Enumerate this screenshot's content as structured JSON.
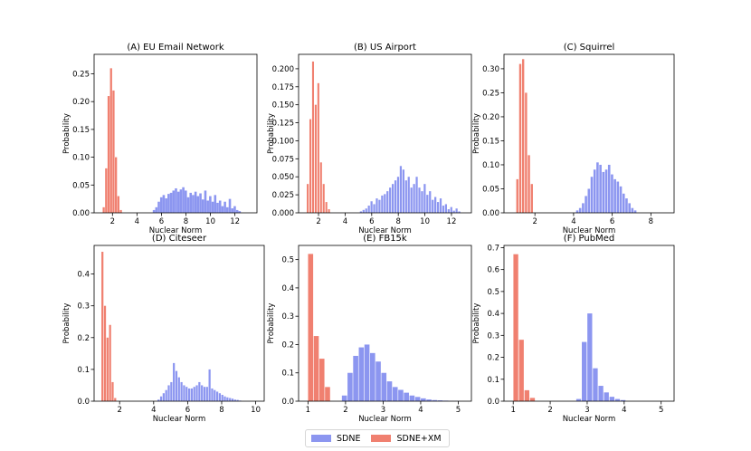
{
  "figure": {
    "legend": [
      {
        "label": "SDNE",
        "color": "#8c96f0"
      },
      {
        "label": "SDNE+XM",
        "color": "#f08070"
      }
    ]
  },
  "chart_data": [
    {
      "type": "bar",
      "title": "(A) EU Email Network",
      "xlabel": "Nuclear  Norm",
      "ylabel": "Probability",
      "xlim": [
        0.5,
        13.8
      ],
      "ylim": [
        0,
        0.285
      ],
      "xticks": [
        2,
        4,
        6,
        8,
        10,
        12
      ],
      "yticks": [
        0,
        0.05,
        0.1,
        0.15,
        0.2,
        0.25
      ],
      "ytick_labels": [
        "0.00",
        "0.05",
        "0.10",
        "0.15",
        "0.20",
        "0.25"
      ],
      "series": [
        {
          "name": "SDNE+XM",
          "bin_width": 0.2,
          "x": [
            1.3,
            1.5,
            1.7,
            1.9,
            2.1,
            2.3,
            2.5,
            2.7
          ],
          "values": [
            0.01,
            0.08,
            0.21,
            0.26,
            0.22,
            0.1,
            0.03,
            0.005
          ]
        },
        {
          "name": "SDNE",
          "bin_width": 0.22,
          "x": [
            5.4,
            5.6,
            5.8,
            6.0,
            6.2,
            6.4,
            6.6,
            6.8,
            7.0,
            7.2,
            7.4,
            7.6,
            7.8,
            8.0,
            8.2,
            8.4,
            8.6,
            8.8,
            9.0,
            9.2,
            9.4,
            9.6,
            9.8,
            10.0,
            10.2,
            10.4,
            10.6,
            10.8,
            11.0,
            11.2,
            11.4,
            11.6,
            11.8,
            12.0,
            12.2,
            12.4
          ],
          "values": [
            0.005,
            0.01,
            0.02,
            0.028,
            0.032,
            0.026,
            0.034,
            0.036,
            0.04,
            0.044,
            0.038,
            0.042,
            0.046,
            0.04,
            0.028,
            0.036,
            0.032,
            0.038,
            0.03,
            0.035,
            0.024,
            0.04,
            0.022,
            0.03,
            0.02,
            0.032,
            0.018,
            0.022,
            0.012,
            0.02,
            0.01,
            0.025,
            0.008,
            0.012,
            0.005,
            0.003
          ]
        }
      ]
    },
    {
      "type": "bar",
      "title": "(B) US Airport",
      "xlabel": "Nuclear  Norm",
      "ylabel": "Probability",
      "xlim": [
        0.5,
        13.5
      ],
      "ylim": [
        0,
        0.22
      ],
      "xticks": [
        2,
        4,
        6,
        8,
        10,
        12
      ],
      "yticks": [
        0,
        0.025,
        0.05,
        0.075,
        0.1,
        0.125,
        0.15,
        0.175,
        0.2
      ],
      "ytick_labels": [
        "0.000",
        "0.025",
        "0.050",
        "0.075",
        "0.100",
        "0.125",
        "0.150",
        "0.175",
        "0.200"
      ],
      "series": [
        {
          "name": "SDNE+XM",
          "bin_width": 0.17,
          "x": [
            1.2,
            1.4,
            1.6,
            1.8,
            2.0,
            2.2,
            2.4,
            2.6,
            2.8
          ],
          "values": [
            0.04,
            0.13,
            0.21,
            0.15,
            0.18,
            0.07,
            0.04,
            0.015,
            0.005
          ]
        },
        {
          "name": "SDNE",
          "bin_width": 0.18,
          "x": [
            5.2,
            5.4,
            5.6,
            5.8,
            6.0,
            6.2,
            6.4,
            6.6,
            6.8,
            7.0,
            7.2,
            7.4,
            7.6,
            7.8,
            8.0,
            8.2,
            8.4,
            8.6,
            8.8,
            9.0,
            9.2,
            9.4,
            9.6,
            9.8,
            10.0,
            10.2,
            10.4,
            10.6,
            10.8,
            11.0,
            11.2,
            11.4,
            11.6,
            11.8,
            12.0,
            12.2,
            12.4,
            12.6
          ],
          "values": [
            0.002,
            0.004,
            0.006,
            0.01,
            0.016,
            0.012,
            0.02,
            0.018,
            0.024,
            0.026,
            0.03,
            0.035,
            0.04,
            0.045,
            0.05,
            0.065,
            0.06,
            0.045,
            0.05,
            0.035,
            0.04,
            0.05,
            0.035,
            0.03,
            0.04,
            0.025,
            0.03,
            0.018,
            0.022,
            0.015,
            0.02,
            0.01,
            0.012,
            0.005,
            0.008,
            0.003,
            0.006,
            0.002
          ]
        }
      ]
    },
    {
      "type": "bar",
      "title": "(C) Squirrel",
      "xlabel": "Nuclear  Norm",
      "ylabel": "Probability",
      "xlim": [
        0.4,
        9.2
      ],
      "ylim": [
        0,
        0.33
      ],
      "xticks": [
        2,
        4,
        6,
        8
      ],
      "yticks": [
        0,
        0.05,
        0.1,
        0.15,
        0.2,
        0.25,
        0.3
      ],
      "ytick_labels": [
        "0.00",
        "0.05",
        "0.10",
        "0.15",
        "0.20",
        "0.25",
        "0.30"
      ],
      "series": [
        {
          "name": "SDNE+XM",
          "bin_width": 0.13,
          "x": [
            1.1,
            1.25,
            1.4,
            1.55,
            1.7,
            1.85
          ],
          "values": [
            0.07,
            0.31,
            0.32,
            0.25,
            0.12,
            0.06
          ]
        },
        {
          "name": "SDNE",
          "bin_width": 0.14,
          "x": [
            4.2,
            4.35,
            4.5,
            4.65,
            4.8,
            4.95,
            5.1,
            5.25,
            5.4,
            5.55,
            5.7,
            5.85,
            6.0,
            6.15,
            6.3,
            6.45,
            6.6,
            6.75,
            6.9,
            7.05,
            7.2
          ],
          "values": [
            0.005,
            0.01,
            0.02,
            0.035,
            0.05,
            0.075,
            0.09,
            0.105,
            0.1,
            0.085,
            0.09,
            0.1,
            0.08,
            0.07,
            0.065,
            0.055,
            0.04,
            0.03,
            0.02,
            0.01,
            0.005
          ]
        }
      ]
    },
    {
      "type": "bar",
      "title": "(D) Citeseer",
      "xlabel": "Nuclear  Norm",
      "ylabel": "Probability",
      "xlim": [
        0.5,
        10.5
      ],
      "ylim": [
        0,
        0.49
      ],
      "xticks": [
        2,
        4,
        6,
        8,
        10
      ],
      "yticks": [
        0,
        0.1,
        0.2,
        0.3,
        0.4
      ],
      "ytick_labels": [
        "0.0",
        "0.1",
        "0.2",
        "0.3",
        "0.4"
      ],
      "series": [
        {
          "name": "SDNE+XM",
          "bin_width": 0.14,
          "x": [
            1.0,
            1.15,
            1.3,
            1.45,
            1.6,
            1.75
          ],
          "values": [
            0.47,
            0.3,
            0.2,
            0.24,
            0.06,
            0.01
          ]
        },
        {
          "name": "SDNE",
          "bin_width": 0.14,
          "x": [
            4.3,
            4.45,
            4.6,
            4.75,
            4.9,
            5.05,
            5.2,
            5.35,
            5.5,
            5.65,
            5.8,
            5.95,
            6.1,
            6.25,
            6.4,
            6.55,
            6.7,
            6.85,
            7.0,
            7.15,
            7.3,
            7.45,
            7.6,
            7.75,
            7.9,
            8.05,
            8.2,
            8.35,
            8.5,
            8.65,
            8.8,
            8.95,
            9.1
          ],
          "values": [
            0.005,
            0.015,
            0.025,
            0.035,
            0.05,
            0.06,
            0.12,
            0.095,
            0.075,
            0.06,
            0.05,
            0.045,
            0.04,
            0.04,
            0.045,
            0.05,
            0.06,
            0.05,
            0.045,
            0.045,
            0.1,
            0.04,
            0.035,
            0.03,
            0.025,
            0.02,
            0.015,
            0.012,
            0.01,
            0.008,
            0.005,
            0.004,
            0.002
          ]
        }
      ]
    },
    {
      "type": "bar",
      "title": "(E) FB15k",
      "xlabel": "Nuclear  Norm",
      "ylabel": "Probability",
      "xlim": [
        0.75,
        5.35
      ],
      "ylim": [
        0,
        0.55
      ],
      "xticks": [
        1,
        2,
        3,
        4,
        5
      ],
      "yticks": [
        0,
        0.1,
        0.2,
        0.3,
        0.4,
        0.5
      ],
      "ytick_labels": [
        "0.0",
        "0.1",
        "0.2",
        "0.3",
        "0.4",
        "0.5"
      ],
      "series": [
        {
          "name": "SDNE+XM",
          "bin_width": 0.145,
          "x": [
            1.075,
            1.225,
            1.375,
            1.525
          ],
          "values": [
            0.52,
            0.23,
            0.15,
            0.05
          ]
        },
        {
          "name": "SDNE",
          "bin_width": 0.145,
          "x": [
            1.975,
            2.125,
            2.275,
            2.425,
            2.575,
            2.725,
            2.875,
            3.025,
            3.175,
            3.325,
            3.475,
            3.625,
            3.775,
            3.925,
            4.075,
            4.225,
            4.375,
            4.525,
            4.675,
            4.825,
            4.975
          ],
          "values": [
            0.02,
            0.1,
            0.16,
            0.19,
            0.2,
            0.17,
            0.14,
            0.1,
            0.07,
            0.05,
            0.04,
            0.03,
            0.02,
            0.015,
            0.01,
            0.006,
            0.004,
            0.003,
            0.002,
            0.001,
            0.001
          ]
        }
      ]
    },
    {
      "type": "bar",
      "title": "(F) PubMed",
      "xlabel": "Nuclear  Norm",
      "ylabel": "Probability",
      "xlim": [
        0.75,
        5.35
      ],
      "ylim": [
        0,
        0.71
      ],
      "xticks": [
        1,
        2,
        3,
        4,
        5
      ],
      "yticks": [
        0,
        0.1,
        0.2,
        0.3,
        0.4,
        0.5,
        0.6,
        0.7
      ],
      "ytick_labels": [
        "0.0",
        "0.1",
        "0.2",
        "0.3",
        "0.4",
        "0.5",
        "0.6",
        "0.7"
      ],
      "series": [
        {
          "name": "SDNE+XM",
          "bin_width": 0.14,
          "x": [
            1.075,
            1.225,
            1.375,
            1.525
          ],
          "values": [
            0.67,
            0.28,
            0.05,
            0.015
          ]
        },
        {
          "name": "SDNE",
          "bin_width": 0.14,
          "x": [
            2.775,
            2.925,
            3.075,
            3.225,
            3.375,
            3.525,
            3.675,
            3.825,
            3.975
          ],
          "values": [
            0.01,
            0.27,
            0.4,
            0.15,
            0.07,
            0.04,
            0.02,
            0.01,
            0.005
          ]
        }
      ]
    }
  ]
}
